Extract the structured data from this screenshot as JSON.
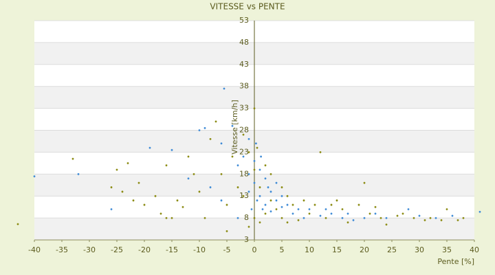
{
  "chart_data": {
    "type": "scatter",
    "title": "VITESSE vs PENTE",
    "xlabel": "Pente [%]",
    "ylabel": "Vitesse [km/h]",
    "xlim": [
      -40,
      40
    ],
    "xticks": [
      -40,
      -35,
      -30,
      -25,
      -20,
      -15,
      -10,
      -5,
      0,
      5,
      10,
      15,
      20,
      25,
      30,
      35,
      40
    ],
    "ylim": [
      3,
      53
    ],
    "yticks": [
      3,
      8,
      13,
      18,
      23,
      28,
      33,
      38,
      43,
      48,
      53
    ],
    "grid": true,
    "series": [
      {
        "color": "#3d8ad6",
        "x": [
          -40,
          -32,
          -26,
          -19,
          -15,
          -10,
          -9,
          -6,
          -5.5,
          -4,
          -3,
          -2,
          -1,
          -1,
          0,
          0,
          0.5,
          1,
          1,
          1.5,
          2,
          2,
          2.5,
          3,
          3,
          4,
          4,
          5,
          5,
          6,
          7,
          8,
          9,
          10,
          12,
          13,
          14,
          16,
          17,
          18,
          20,
          22,
          24,
          28,
          30,
          33,
          36,
          41,
          -12,
          -8,
          -6,
          -3,
          -1,
          0.3,
          1.2,
          -0.5
        ],
        "values": [
          17.5,
          18,
          10,
          24,
          23.5,
          28,
          28.5,
          25,
          37.5,
          29,
          20,
          22,
          18,
          14,
          21,
          16,
          12,
          19,
          13,
          10,
          17,
          11,
          15,
          9.5,
          14,
          12,
          16,
          10.5,
          13,
          11,
          9,
          10,
          8,
          10,
          8.5,
          10,
          9,
          8,
          9,
          7.5,
          8,
          9,
          8,
          10,
          8.5,
          8,
          8.5,
          9.4,
          17,
          15,
          12,
          8,
          26,
          25,
          22,
          10
        ]
      },
      {
        "color": "#8a8a10",
        "x": [
          -43,
          -33,
          -25,
          -24,
          -23,
          -21,
          -20,
          -18,
          -17,
          -16,
          -16,
          -14,
          -13,
          -12,
          -11,
          -10,
          -9,
          -8,
          -7,
          -6,
          -5,
          -4,
          -3,
          -2,
          -2,
          -1,
          -1,
          0,
          0,
          0,
          0.5,
          1,
          1,
          2,
          2,
          3,
          3,
          4,
          5,
          5,
          6,
          7,
          8,
          9,
          10,
          11,
          12,
          13,
          15,
          16,
          17,
          19,
          20,
          21,
          22,
          23,
          24,
          26,
          27,
          29,
          31,
          32,
          34,
          35,
          37,
          38,
          -5,
          -26,
          -22,
          -15,
          6,
          14
        ],
        "values": [
          6.6,
          21.5,
          19,
          14,
          20.5,
          16,
          11,
          13,
          9,
          20,
          8,
          12,
          10.5,
          22,
          18,
          14,
          8,
          26,
          30,
          18,
          11,
          22,
          15,
          27,
          13,
          23,
          6,
          33,
          19,
          8,
          24,
          15,
          7,
          20,
          9,
          18,
          12,
          10,
          15,
          8,
          13,
          11,
          7.5,
          12,
          9,
          11,
          23,
          8,
          12,
          10,
          7,
          11,
          16,
          9,
          10.5,
          8,
          6.5,
          8.5,
          9,
          8,
          7.5,
          8,
          7.5,
          10,
          7.5,
          8,
          5,
          15,
          12,
          8,
          7,
          11
        ]
      }
    ]
  }
}
